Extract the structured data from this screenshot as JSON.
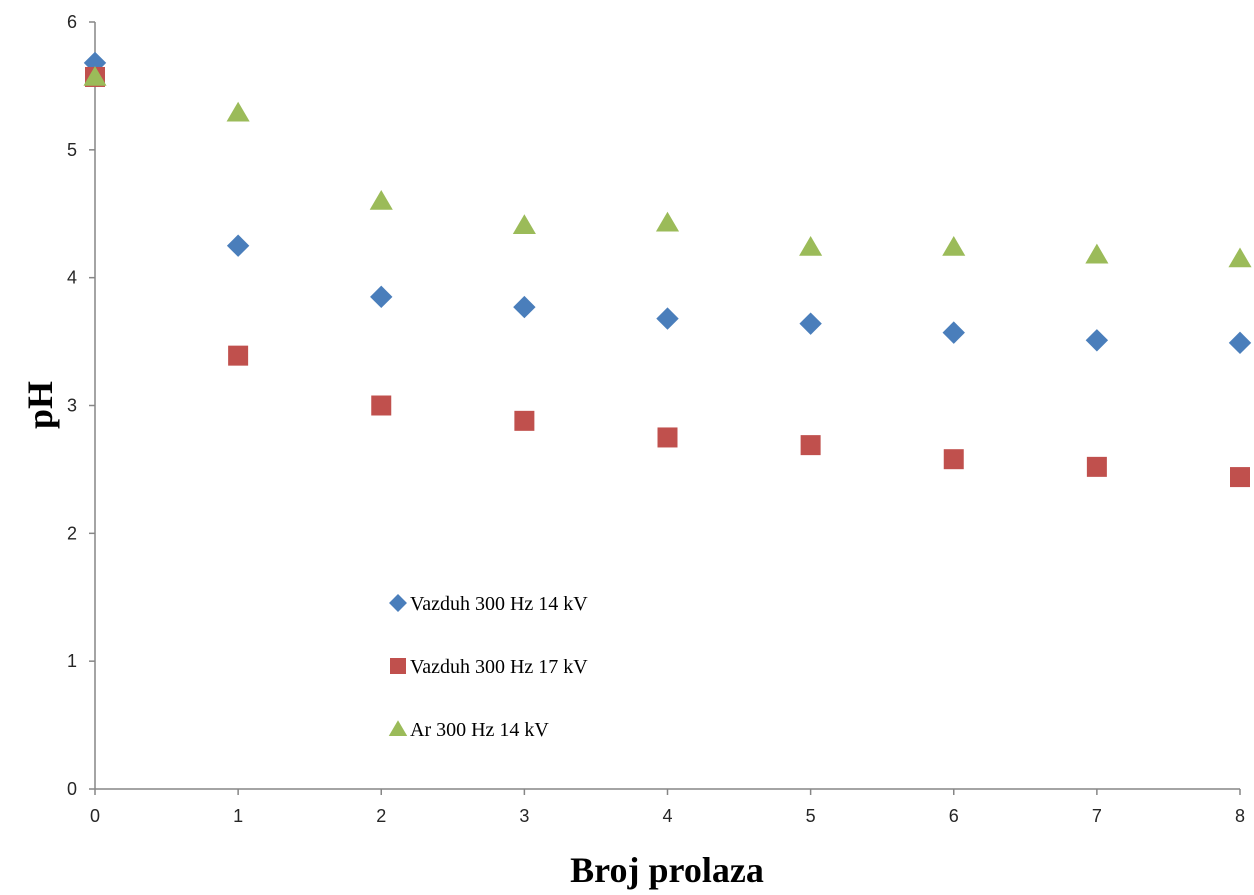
{
  "chart_data": {
    "type": "scatter",
    "xlabel": "Broj prolaza",
    "ylabel": "pH",
    "xlim": [
      0,
      8
    ],
    "ylim": [
      0,
      6
    ],
    "x_ticks": [
      0,
      1,
      2,
      3,
      4,
      5,
      6,
      7,
      8
    ],
    "y_ticks": [
      0,
      1,
      2,
      3,
      4,
      5,
      6
    ],
    "grid": false,
    "legend_position": "lower-left inside plot",
    "series": [
      {
        "name": "Vazduh 300 Hz 14 kV",
        "marker": "diamond",
        "color": "#4a7ebb",
        "x": [
          0,
          1,
          2,
          3,
          4,
          5,
          6,
          7,
          8
        ],
        "y": [
          5.68,
          4.25,
          3.85,
          3.77,
          3.68,
          3.64,
          3.57,
          3.51,
          3.49
        ]
      },
      {
        "name": "Vazduh 300 Hz 17 kV",
        "marker": "square",
        "color": "#c0504d",
        "x": [
          0,
          1,
          2,
          3,
          4,
          5,
          6,
          7,
          8
        ],
        "y": [
          5.57,
          3.39,
          3.0,
          2.88,
          2.75,
          2.69,
          2.58,
          2.52,
          2.44
        ]
      },
      {
        "name": "Ar 300 Hz 14 kV",
        "marker": "triangle",
        "color": "#9bbb59",
        "x": [
          0,
          1,
          2,
          3,
          4,
          5,
          6,
          7,
          8
        ],
        "y": [
          5.57,
          5.29,
          4.6,
          4.41,
          4.43,
          4.24,
          4.24,
          4.18,
          4.15
        ]
      }
    ]
  }
}
